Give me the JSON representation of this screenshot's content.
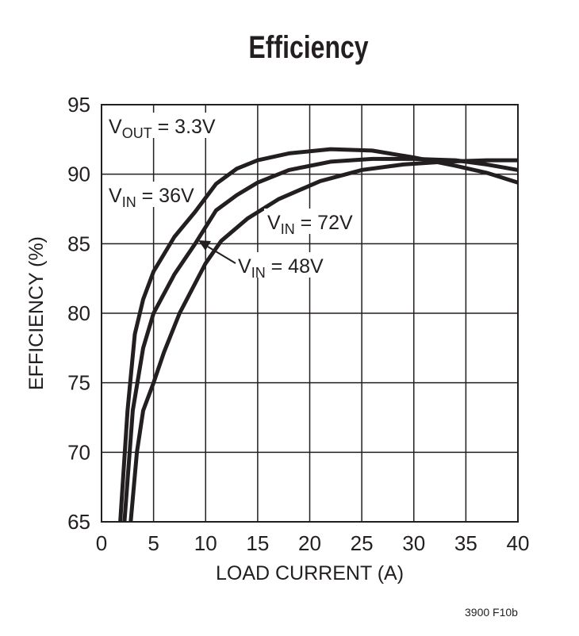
{
  "chart_data": {
    "type": "line",
    "title": "Efficiency",
    "xlabel": "LOAD CURRENT (A)",
    "ylabel": "EFFICIENCY (%)",
    "xlim": [
      0,
      40
    ],
    "ylim": [
      65,
      95
    ],
    "xticks": [
      0,
      5,
      10,
      15,
      20,
      25,
      30,
      35,
      40
    ],
    "yticks": [
      65,
      70,
      75,
      80,
      85,
      90,
      95
    ],
    "grid": true,
    "annotations": [
      {
        "main": "V",
        "sub": "OUT",
        "rest": " = 3.3V"
      },
      {
        "main": "V",
        "sub": "IN",
        "rest": " = 36V"
      },
      {
        "main": "V",
        "sub": "IN",
        "rest": " = 48V"
      },
      {
        "main": "V",
        "sub": "IN",
        "rest": " = 72V"
      }
    ],
    "series": [
      {
        "x": [
          1.8,
          2.5,
          3.2,
          4,
          5,
          7,
          9,
          11,
          13,
          15,
          18,
          22,
          26,
          30,
          34,
          37,
          40
        ],
        "values": [
          65,
          73,
          78.5,
          81,
          83,
          85.5,
          87.3,
          89.3,
          90.4,
          91,
          91.5,
          91.8,
          91.7,
          91.2,
          90.6,
          90.1,
          89.4
        ]
      },
      {
        "x": [
          2.2,
          3,
          4,
          5,
          7,
          9,
          11,
          13,
          15,
          18,
          22,
          26,
          30,
          34,
          37,
          40
        ],
        "values": [
          65,
          73,
          77.5,
          80,
          82.8,
          85,
          87.4,
          88.5,
          89.4,
          90.3,
          90.9,
          91.1,
          91.1,
          91,
          90.7,
          90.3
        ]
      },
      {
        "x": [
          2.8,
          3.4,
          4,
          5,
          6,
          7.5,
          10,
          11.5,
          14,
          17,
          21,
          25,
          29,
          33,
          37,
          40
        ],
        "values": [
          65,
          70,
          73,
          75,
          77.2,
          80,
          83.6,
          85.2,
          86.8,
          88.2,
          89.5,
          90.3,
          90.7,
          90.9,
          91,
          91
        ]
      }
    ]
  },
  "figure_ref": "3900 F10b",
  "line_color": "#231f20"
}
